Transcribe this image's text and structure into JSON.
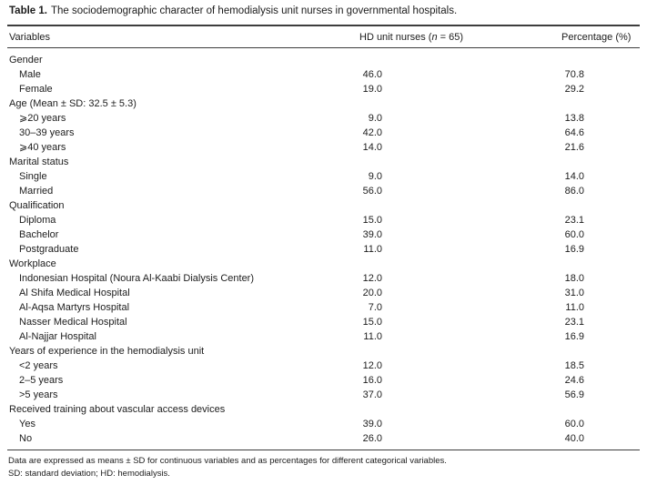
{
  "table": {
    "title": {
      "label": "Table 1.",
      "caption": "The sociodemographic character of hemodialysis unit nurses in governmental hospitals."
    },
    "columns": {
      "variables": "Variables",
      "hd_prefix": "HD unit nurses (",
      "hd_n": "n",
      "hd_suffix": " = 65)",
      "percentage": "Percentage (%)"
    },
    "sections": [
      {
        "header": "Gender",
        "items": [
          {
            "label": "Male",
            "count": "46.0",
            "pct": "70.8"
          },
          {
            "label": "Female",
            "count": "19.0",
            "pct": "29.2"
          }
        ]
      },
      {
        "header": "Age (Mean ± SD: 32.5 ± 5.3)",
        "items": [
          {
            "label": "⩾20 years",
            "count": "9.0",
            "pct": "13.8"
          },
          {
            "label": "30–39 years",
            "count": "42.0",
            "pct": "64.6"
          },
          {
            "label": "⩾40 years",
            "count": "14.0",
            "pct": "21.6"
          }
        ]
      },
      {
        "header": "Marital status",
        "items": [
          {
            "label": "Single",
            "count": "9.0",
            "pct": "14.0"
          },
          {
            "label": "Married",
            "count": "56.0",
            "pct": "86.0"
          }
        ]
      },
      {
        "header": "Qualification",
        "items": [
          {
            "label": "Diploma",
            "count": "15.0",
            "pct": "23.1"
          },
          {
            "label": "Bachelor",
            "count": "39.0",
            "pct": "60.0"
          },
          {
            "label": "Postgraduate",
            "count": "11.0",
            "pct": "16.9"
          }
        ]
      },
      {
        "header": "Workplace",
        "items": [
          {
            "label": "Indonesian Hospital (Noura Al-Kaabi Dialysis Center)",
            "count": "12.0",
            "pct": "18.0"
          },
          {
            "label": "Al Shifa Medical Hospital",
            "count": "20.0",
            "pct": "31.0"
          },
          {
            "label": "Al-Aqsa Martyrs Hospital",
            "count": "7.0",
            "pct": "11.0"
          },
          {
            "label": "Nasser Medical Hospital",
            "count": "15.0",
            "pct": "23.1"
          },
          {
            "label": "Al-Najjar Hospital",
            "count": "11.0",
            "pct": "16.9"
          }
        ]
      },
      {
        "header": "Years of experience in the hemodialysis unit",
        "items": [
          {
            "label": "<2 years",
            "count": "12.0",
            "pct": "18.5"
          },
          {
            "label": "2–5 years",
            "count": "16.0",
            "pct": "24.6"
          },
          {
            "label": ">5 years",
            "count": "37.0",
            "pct": "56.9"
          }
        ]
      },
      {
        "header": "Received training about vascular access devices",
        "items": [
          {
            "label": "Yes",
            "count": "39.0",
            "pct": "60.0"
          },
          {
            "label": "No",
            "count": "26.0",
            "pct": "40.0"
          }
        ]
      }
    ],
    "footnotes": [
      "Data are expressed as means ± SD for continuous variables and as percentages for different categorical variables.",
      "SD: standard deviation; HD: hemodialysis."
    ]
  }
}
